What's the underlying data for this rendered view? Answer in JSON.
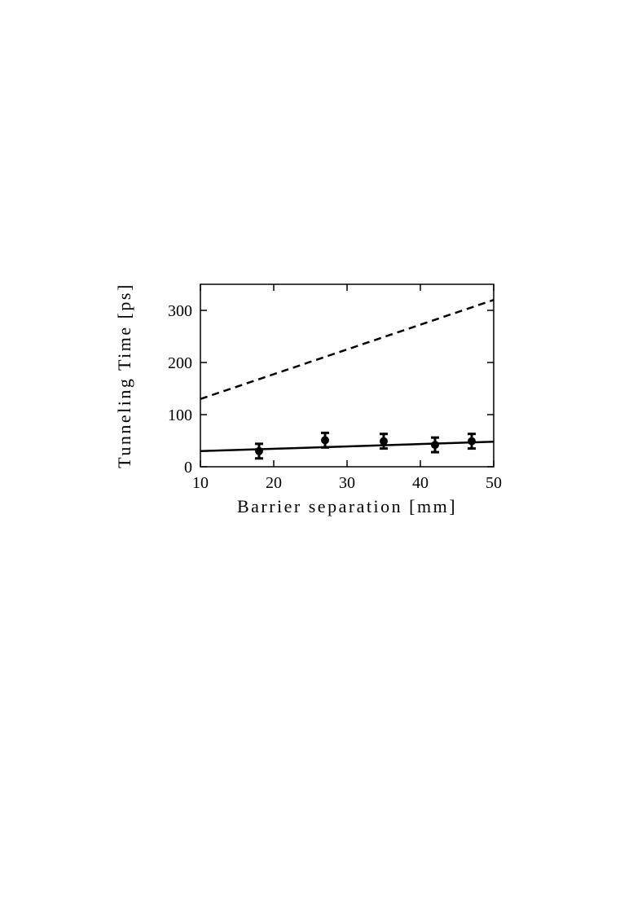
{
  "chart_data": {
    "type": "line",
    "x_label": "Barrier separation [mm]",
    "y_label": "Tunneling Time [ps]",
    "xlim": [
      10,
      50
    ],
    "xticks": [
      10,
      20,
      30,
      40,
      50
    ],
    "ylim": [
      0,
      350
    ],
    "yticks": [
      0,
      100,
      200,
      300
    ],
    "series": [
      {
        "x": [
          10,
          50
        ],
        "values": [
          130,
          320
        ],
        "color": "#000000",
        "dashed": true
      },
      {
        "x": [
          10,
          50
        ],
        "values": [
          30,
          48
        ],
        "color": "#000000",
        "dashed": false
      },
      {
        "x": [
          18,
          27,
          35,
          42,
          47
        ],
        "values": [
          30,
          51,
          49,
          42,
          49
        ],
        "errors": [
          14,
          14,
          14,
          14,
          14
        ],
        "color": "#000000",
        "markers": true
      }
    ]
  }
}
